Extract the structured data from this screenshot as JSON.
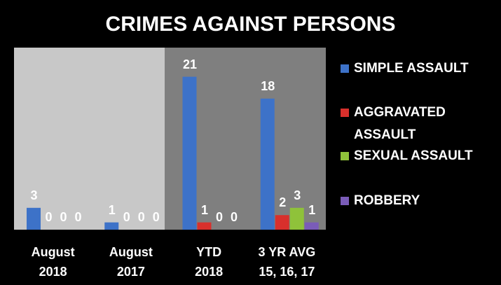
{
  "chart_data": {
    "type": "bar",
    "title": "CRIMES AGAINST PERSONS",
    "categories": [
      "August\n2018",
      "August\n2017",
      "YTD\n2018",
      "3 YR AVG\n15, 16, 17"
    ],
    "series": [
      {
        "name": "SIMPLE ASSAULT",
        "color": "#3d72c8",
        "values": [
          3,
          1,
          21,
          18
        ]
      },
      {
        "name": "AGGRAVATED ASSAULT",
        "color": "#d8302c",
        "values": [
          0,
          0,
          1,
          2
        ]
      },
      {
        "name": "SEXUAL ASSAULT",
        "color": "#8fc23a",
        "values": [
          0,
          0,
          0,
          3
        ]
      },
      {
        "name": "ROBBERY",
        "color": "#7a5cb8",
        "values": [
          0,
          0,
          0,
          1
        ]
      }
    ],
    "ylim": [
      0,
      25
    ],
    "legend": "right"
  }
}
